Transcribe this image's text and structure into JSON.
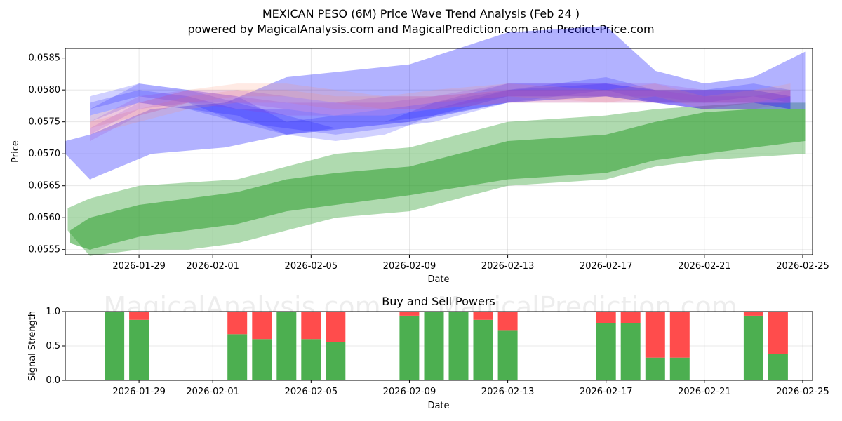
{
  "title": "MEXICAN PESO (6M) Price Wave Trend Analysis (Feb 24 )",
  "subtitle": "powered by MagicalAnalysis.com and MagicalPrediction.com and Predict-Price.com",
  "watermarks": [
    "MagicalAnalysis.com",
    "MagicalPrediction.com"
  ],
  "colors": {
    "blue": "#0000ff",
    "red": "#ff8c6b",
    "purple": "#9933cc",
    "green": "#2e9e2e",
    "buy": "#4caf50",
    "sell": "#ff4c4c"
  },
  "chart_data": [
    {
      "type": "area",
      "title": "",
      "xlabel": "Date",
      "ylabel": "Price",
      "x_tick_labels": [
        "2026-01-29",
        "2026-02-01",
        "2026-02-05",
        "2026-02-09",
        "2026-02-13",
        "2026-02-17",
        "2026-02-21",
        "2026-02-25"
      ],
      "x_tick_days": [
        29,
        32,
        36,
        40,
        44,
        48,
        52,
        56
      ],
      "x_range_days": [
        26.0,
        56.4
      ],
      "y_tick_labels": [
        "0.0555",
        "0.0560",
        "0.0565",
        "0.0570",
        "0.0575",
        "0.0580",
        "0.0585"
      ],
      "ylim": [
        0.05542,
        0.05865
      ],
      "grid": true,
      "green_bands": [
        {
          "name": "green-outer-band",
          "x": [
            26.1,
            27,
            29,
            31,
            33,
            35,
            37,
            40,
            44,
            48,
            50,
            52,
            54,
            56.1
          ],
          "upper": [
            0.05615,
            0.0563,
            0.0565,
            0.05655,
            0.0566,
            0.0568,
            0.057,
            0.0571,
            0.0575,
            0.0576,
            0.0577,
            0.05775,
            0.0578,
            0.0578
          ],
          "lower": [
            0.0558,
            0.0554,
            0.0555,
            0.0555,
            0.0556,
            0.0558,
            0.056,
            0.0561,
            0.0565,
            0.0566,
            0.0568,
            0.0569,
            0.05695,
            0.057
          ]
        },
        {
          "name": "green-inner-band",
          "x": [
            26.2,
            27,
            29,
            31,
            33,
            35,
            37,
            40,
            44,
            48,
            50,
            52,
            54,
            56.1
          ],
          "upper": [
            0.0558,
            0.056,
            0.0562,
            0.0563,
            0.0564,
            0.0566,
            0.0567,
            0.0568,
            0.0572,
            0.0573,
            0.0575,
            0.05765,
            0.0577,
            0.0577
          ],
          "lower": [
            0.0556,
            0.0555,
            0.0557,
            0.0558,
            0.0559,
            0.0561,
            0.0562,
            0.05635,
            0.0566,
            0.0567,
            0.0569,
            0.057,
            0.0571,
            0.0572
          ]
        }
      ],
      "wave_bands": [
        {
          "name": "blue-wide-band",
          "color": "blue",
          "x": [
            26.0,
            27.0,
            29.5,
            32.5,
            35,
            40,
            44,
            48,
            50,
            52,
            54,
            56.1
          ],
          "upper": [
            0.0572,
            0.0573,
            0.0577,
            0.0578,
            0.0582,
            0.0584,
            0.0589,
            0.059,
            0.0583,
            0.0581,
            0.0582,
            0.0586
          ],
          "lower": [
            0.057,
            0.0566,
            0.057,
            0.0571,
            0.0573,
            0.0575,
            0.0578,
            0.0579,
            0.0578,
            0.0577,
            0.0577,
            0.0577
          ]
        },
        {
          "name": "blue-band-1",
          "color": "blue",
          "x": [
            27,
            29,
            31,
            33,
            35,
            37,
            39,
            41,
            44,
            48,
            50,
            52,
            54,
            55.5
          ],
          "upper": [
            0.0579,
            0.0581,
            0.058,
            0.0578,
            0.0576,
            0.0574,
            0.0575,
            0.0578,
            0.058,
            0.0581,
            0.058,
            0.058,
            0.0581,
            0.058
          ],
          "lower": [
            0.0577,
            0.0579,
            0.0578,
            0.0575,
            0.0573,
            0.0572,
            0.0573,
            0.0576,
            0.0578,
            0.0579,
            0.0578,
            0.0578,
            0.0579,
            0.0578
          ]
        },
        {
          "name": "blue-band-2",
          "color": "blue",
          "x": [
            27,
            29,
            31,
            33,
            35,
            37,
            39,
            41,
            44,
            48,
            50,
            52,
            54,
            55.5
          ],
          "upper": [
            0.0578,
            0.058,
            0.0579,
            0.0577,
            0.0577,
            0.0576,
            0.0576,
            0.0577,
            0.058,
            0.0582,
            0.058,
            0.058,
            0.058,
            0.0579
          ],
          "lower": [
            0.0576,
            0.0578,
            0.0577,
            0.0575,
            0.0574,
            0.0573,
            0.0574,
            0.0575,
            0.0578,
            0.058,
            0.0578,
            0.0578,
            0.0578,
            0.0577
          ]
        },
        {
          "name": "blue-band-3",
          "color": "blue",
          "x": [
            27,
            29,
            31,
            33,
            35,
            37,
            39,
            41,
            44,
            48,
            50,
            52,
            54,
            55.5
          ],
          "upper": [
            0.0577,
            0.0581,
            0.058,
            0.0579,
            0.0575,
            0.0576,
            0.0577,
            0.0578,
            0.0581,
            0.0581,
            0.058,
            0.058,
            0.058,
            0.0579
          ],
          "lower": [
            0.0575,
            0.0578,
            0.0577,
            0.0576,
            0.0573,
            0.0574,
            0.0575,
            0.0576,
            0.0579,
            0.0579,
            0.0578,
            0.0577,
            0.0578,
            0.0577
          ]
        },
        {
          "name": "red-band-1",
          "color": "red",
          "x": [
            27,
            29,
            31,
            33,
            35,
            37,
            39,
            41,
            44,
            48,
            50,
            52,
            54,
            55.5
          ],
          "upper": [
            0.0576,
            0.0578,
            0.058,
            0.0581,
            0.0581,
            0.058,
            0.0579,
            0.0579,
            0.058,
            0.058,
            0.0581,
            0.0579,
            0.058,
            0.058
          ],
          "lower": [
            0.0574,
            0.0576,
            0.0578,
            0.0579,
            0.0579,
            0.0578,
            0.0577,
            0.0577,
            0.0578,
            0.0578,
            0.0579,
            0.0577,
            0.0578,
            0.0578
          ]
        },
        {
          "name": "red-band-2",
          "color": "red",
          "x": [
            27,
            29,
            31,
            33,
            35,
            37,
            39,
            41,
            44,
            48,
            50,
            52,
            54,
            55.5
          ],
          "upper": [
            0.0575,
            0.0577,
            0.0579,
            0.058,
            0.058,
            0.0579,
            0.0579,
            0.058,
            0.0581,
            0.058,
            0.058,
            0.058,
            0.058,
            0.0581
          ],
          "lower": [
            0.0573,
            0.0575,
            0.0577,
            0.0578,
            0.0578,
            0.0577,
            0.0577,
            0.0578,
            0.0579,
            0.0578,
            0.0578,
            0.0578,
            0.0578,
            0.0579
          ]
        },
        {
          "name": "purple-band-1",
          "color": "purple",
          "x": [
            27,
            29,
            31,
            33,
            35,
            37,
            39,
            41,
            44,
            48,
            50,
            52,
            54,
            55.5
          ],
          "upper": [
            0.0575,
            0.0579,
            0.058,
            0.0579,
            0.0578,
            0.0578,
            0.0578,
            0.0579,
            0.0581,
            0.0581,
            0.0581,
            0.058,
            0.058,
            0.058
          ],
          "lower": [
            0.0573,
            0.0577,
            0.0578,
            0.0577,
            0.0576,
            0.0576,
            0.0576,
            0.0577,
            0.0579,
            0.0579,
            0.0579,
            0.0578,
            0.0578,
            0.0578
          ]
        },
        {
          "name": "purple-band-2",
          "color": "purple",
          "x": [
            27,
            29,
            31,
            33,
            35,
            37,
            39,
            41,
            44,
            48,
            50,
            52,
            54,
            55.5
          ],
          "upper": [
            0.0574,
            0.0578,
            0.058,
            0.058,
            0.0579,
            0.0578,
            0.0579,
            0.0579,
            0.058,
            0.058,
            0.058,
            0.0579,
            0.0579,
            0.058
          ],
          "lower": [
            0.0572,
            0.0576,
            0.0578,
            0.0578,
            0.0577,
            0.0576,
            0.0577,
            0.0577,
            0.0578,
            0.0578,
            0.0578,
            0.0577,
            0.0577,
            0.0578
          ]
        }
      ]
    },
    {
      "type": "bar",
      "title": "Buy and Sell Powers",
      "xlabel": "Date",
      "ylabel": "Signal Strength",
      "ylim": [
        0,
        1
      ],
      "y_tick_labels": [
        "0.0",
        "0.5",
        "1.0"
      ],
      "x_tick_labels": [
        "2026-01-29",
        "2026-02-01",
        "2026-02-05",
        "2026-02-09",
        "2026-02-13",
        "2026-02-17",
        "2026-02-21",
        "2026-02-25"
      ],
      "x_tick_days": [
        29,
        32,
        36,
        40,
        44,
        48,
        52,
        56
      ],
      "x_range_days": [
        26.0,
        56.4
      ],
      "categories": [
        "2026-01-28",
        "2026-01-29",
        "2026-02-02",
        "2026-02-03",
        "2026-02-04",
        "2026-02-05",
        "2026-02-06",
        "2026-02-09",
        "2026-02-10",
        "2026-02-11",
        "2026-02-12",
        "2026-02-13",
        "2026-02-17",
        "2026-02-18",
        "2026-02-19",
        "2026-02-20",
        "2026-02-23",
        "2026-02-24"
      ],
      "x_days": [
        28,
        29,
        33,
        34,
        35,
        36,
        37,
        40,
        41,
        42,
        43,
        44,
        48,
        49,
        50,
        51,
        54,
        55
      ],
      "series": [
        {
          "name": "Buy",
          "values": [
            1.0,
            0.88,
            0.67,
            0.6,
            1.0,
            0.6,
            0.56,
            0.94,
            1.0,
            1.0,
            0.88,
            0.72,
            0.83,
            0.83,
            0.33,
            0.33,
            0.94,
            0.38
          ]
        },
        {
          "name": "Sell",
          "values": [
            0.0,
            0.12,
            0.33,
            0.4,
            0.0,
            0.4,
            0.44,
            0.06,
            0.0,
            0.0,
            0.12,
            0.28,
            0.17,
            0.17,
            0.67,
            0.67,
            0.06,
            0.62
          ]
        }
      ]
    }
  ]
}
